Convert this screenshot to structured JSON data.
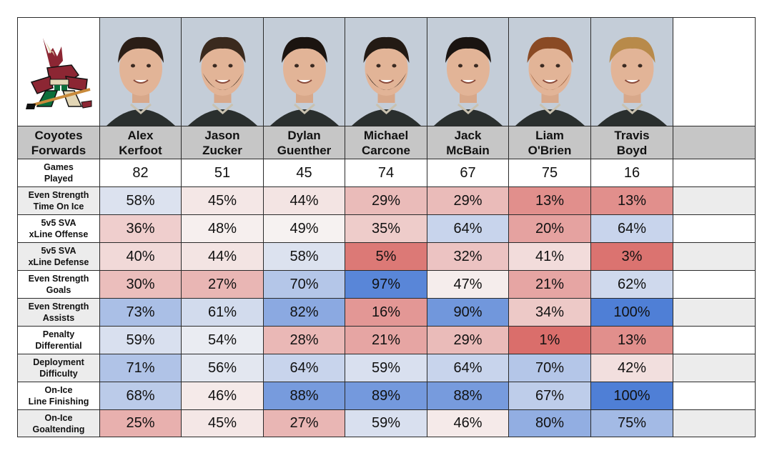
{
  "team_logo": {
    "name": "Arizona Coyotes logo",
    "text": ""
  },
  "header_label": "Coyotes\nForwards",
  "players": [
    {
      "name": "Alex\nKerfoot"
    },
    {
      "name": "Jason\nZucker"
    },
    {
      "name": "Dylan\nGuenther"
    },
    {
      "name": "Michael\nCarcone"
    },
    {
      "name": "Jack\nMcBain"
    },
    {
      "name": "Liam\nO'Brien"
    },
    {
      "name": "Travis\nBoyd"
    }
  ],
  "games_played": {
    "label": "Games\nPlayed",
    "values": [
      "82",
      "51",
      "45",
      "74",
      "67",
      "75",
      "16"
    ]
  },
  "chart_data": {
    "type": "table",
    "title": "Coyotes Forwards",
    "columns": [
      "Alex Kerfoot",
      "Jason Zucker",
      "Dylan Guenther",
      "Michael Carcone",
      "Jack McBain",
      "Liam O'Brien",
      "Travis Boyd"
    ],
    "rows": [
      {
        "label": "Even Strength\nTime On Ice",
        "values": [
          58,
          45,
          44,
          29,
          29,
          13,
          13
        ]
      },
      {
        "label": "5v5 SVA\nxLine Offense",
        "values": [
          36,
          48,
          49,
          35,
          64,
          20,
          64
        ]
      },
      {
        "label": "5v5 SVA\nxLine Defense",
        "values": [
          40,
          44,
          58,
          5,
          32,
          41,
          3
        ]
      },
      {
        "label": "Even Strength\nGoals",
        "values": [
          30,
          27,
          70,
          97,
          47,
          21,
          62
        ]
      },
      {
        "label": "Even Strength\nAssists",
        "values": [
          73,
          61,
          82,
          16,
          90,
          34,
          100
        ]
      },
      {
        "label": "Penalty\nDifferential",
        "values": [
          59,
          54,
          28,
          21,
          29,
          1,
          13
        ]
      },
      {
        "label": "Deployment\nDifficulty",
        "values": [
          71,
          56,
          64,
          59,
          64,
          70,
          42
        ]
      },
      {
        "label": "On-Ice\nLine Finishing",
        "values": [
          68,
          46,
          88,
          89,
          88,
          67,
          100
        ]
      },
      {
        "label": "On-Ice\nGoaltending",
        "values": [
          25,
          45,
          27,
          59,
          46,
          80,
          75
        ]
      }
    ],
    "unit": "%",
    "color_scale": {
      "low": "#d96b68",
      "mid": "#f7f5f4",
      "high": "#4f7fd6"
    }
  },
  "colors": {
    "header_bg": "#c6c6c6",
    "stripe_bg": "#ececec",
    "border": "#2a2a2a"
  }
}
